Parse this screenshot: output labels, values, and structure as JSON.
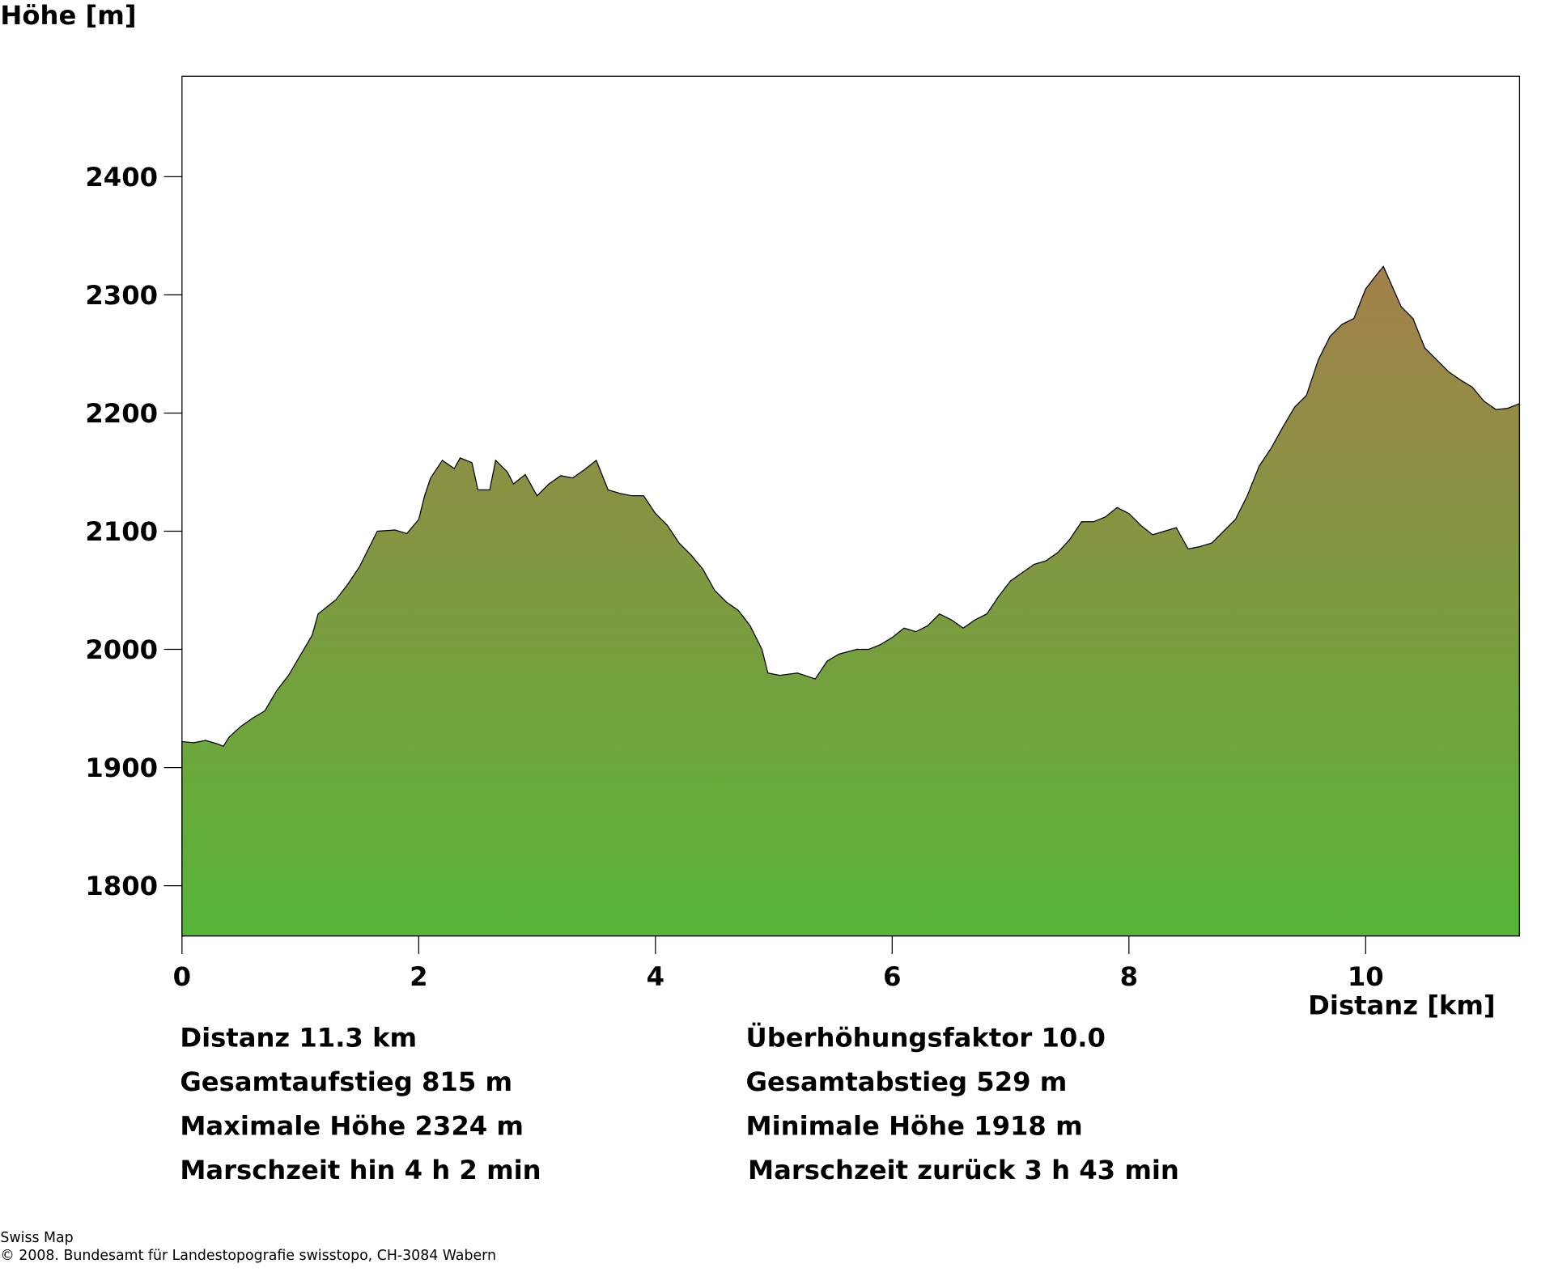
{
  "chart_data": {
    "type": "area",
    "y_label": "Höhe [m]",
    "x_label": "Distanz [km]",
    "x": [
      0,
      0.1,
      0.2,
      0.3,
      0.35,
      0.4,
      0.5,
      0.6,
      0.65,
      0.7,
      0.8,
      0.9,
      1.0,
      1.1,
      1.15,
      1.3,
      1.4,
      1.5,
      1.6,
      1.65,
      1.8,
      1.9,
      2.0,
      2.05,
      2.1,
      2.2,
      2.3,
      2.35,
      2.45,
      2.5,
      2.6,
      2.65,
      2.75,
      2.8,
      2.9,
      3.0,
      3.1,
      3.2,
      3.3,
      3.4,
      3.5,
      3.6,
      3.7,
      3.8,
      3.9,
      4.0,
      4.1,
      4.2,
      4.3,
      4.4,
      4.5,
      4.6,
      4.7,
      4.8,
      4.9,
      4.95,
      5.05,
      5.2,
      5.35,
      5.45,
      5.55,
      5.7,
      5.8,
      5.9,
      6.0,
      6.1,
      6.2,
      6.3,
      6.4,
      6.5,
      6.6,
      6.7,
      6.8,
      6.9,
      7.0,
      7.1,
      7.2,
      7.3,
      7.4,
      7.5,
      7.6,
      7.7,
      7.8,
      7.9,
      8.0,
      8.1,
      8.2,
      8.3,
      8.4,
      8.5,
      8.6,
      8.7,
      8.8,
      8.9,
      9.0,
      9.1,
      9.2,
      9.3,
      9.4,
      9.5,
      9.6,
      9.7,
      9.8,
      9.9,
      10.0,
      10.1,
      10.15,
      10.3,
      10.4,
      10.5,
      10.6,
      10.7,
      10.8,
      10.9,
      11.0,
      11.1,
      11.2,
      11.3
    ],
    "values": [
      1922,
      1921,
      1923,
      1920,
      1918,
      1926,
      1935,
      1942,
      1945,
      1948,
      1965,
      1978,
      1995,
      2012,
      2030,
      2042,
      2055,
      2070,
      2090,
      2100,
      2101,
      2098,
      2110,
      2130,
      2145,
      2160,
      2153,
      2162,
      2158,
      2135,
      2135,
      2160,
      2150,
      2140,
      2148,
      2130,
      2140,
      2147,
      2145,
      2152,
      2160,
      2135,
      2132,
      2130,
      2130,
      2115,
      2105,
      2090,
      2080,
      2068,
      2050,
      2040,
      2033,
      2020,
      2000,
      1980,
      1978,
      1980,
      1975,
      1990,
      1996,
      2000,
      2000,
      2004,
      2010,
      2018,
      2015,
      2020,
      2030,
      2025,
      2018,
      2025,
      2030,
      2045,
      2058,
      2065,
      2072,
      2075,
      2082,
      2093,
      2108,
      2108,
      2112,
      2120,
      2115,
      2105,
      2097,
      2100,
      2103,
      2085,
      2087,
      2090,
      2100,
      2110,
      2130,
      2155,
      2170,
      2188,
      2205,
      2215,
      2245,
      2265,
      2275,
      2280,
      2305,
      2318,
      2324,
      2290,
      2280,
      2255,
      2245,
      2235,
      2228,
      2222,
      2210,
      2203,
      2204,
      2208
    ],
    "fill_colors": [
      "#a3804a",
      "#56b536"
    ],
    "xlim": [
      0,
      11.3
    ],
    "ylim": [
      1757.5,
      2485
    ],
    "xticks": [
      0,
      2,
      4,
      6,
      8,
      10
    ],
    "yticks": [
      1800,
      1900,
      2000,
      2100,
      2200,
      2300,
      2400
    ]
  },
  "stats": [
    [
      "Distanz 11.3 km",
      "Überhöhungsfaktor 10.0"
    ],
    [
      "Gesamtaufstieg  815 m",
      "Gesamtabstieg  529 m"
    ],
    [
      "Maximale Höhe  2324 m",
      "Minimale Höhe  1918 m"
    ],
    [
      "Marschzeit hin  4 h 2 min",
      "Marschzeit zurück  3 h 43 min"
    ]
  ],
  "footer": [
    "Swiss Map",
    "© 2008. Bundesamt für Landestopografie swisstopo, CH-3084 Wabern"
  ]
}
